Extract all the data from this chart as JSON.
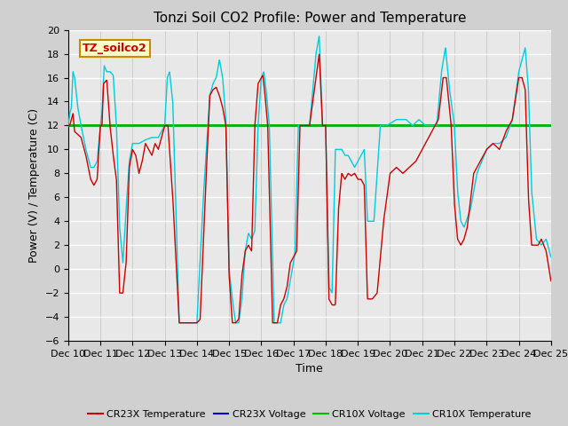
{
  "title": "Tonzi Soil CO2 Profile: Power and Temperature",
  "ylabel": "Power (V) / Temperature (C)",
  "xlabel": "Time",
  "ylim": [
    -6,
    20
  ],
  "yticks": [
    -6,
    -4,
    -2,
    0,
    2,
    4,
    6,
    8,
    10,
    12,
    14,
    16,
    18,
    20
  ],
  "xtick_labels": [
    "Dec 10",
    "Dec 11",
    "Dec 12",
    "Dec 13",
    "Dec 14",
    "Dec 15",
    "Dec 16",
    "Dec 17",
    "Dec 18",
    "Dec 19",
    "Dec 20",
    "Dec 21",
    "Dec 22",
    "Dec 23",
    "Dec 24",
    "Dec 25"
  ],
  "legend_labels": [
    "CR23X Temperature",
    "CR23X Voltage",
    "CR10X Voltage",
    "CR10X Temperature"
  ],
  "cr23x_temp_color": "#cc0000",
  "cr23x_volt_color": "#0000cc",
  "cr10x_volt_color": "#00bb00",
  "cr10x_temp_color": "#00ccdd",
  "voltage_value": 12.0,
  "annotation_text": "TZ_soilco2",
  "annotation_bg": "#ffffcc",
  "annotation_border": "#cc8800",
  "fig_bg_color": "#d0d0d0",
  "plot_bg_color": "#e8e8e8",
  "grid_color": "#ffffff",
  "title_fontsize": 11,
  "axis_fontsize": 9,
  "tick_fontsize": 8
}
